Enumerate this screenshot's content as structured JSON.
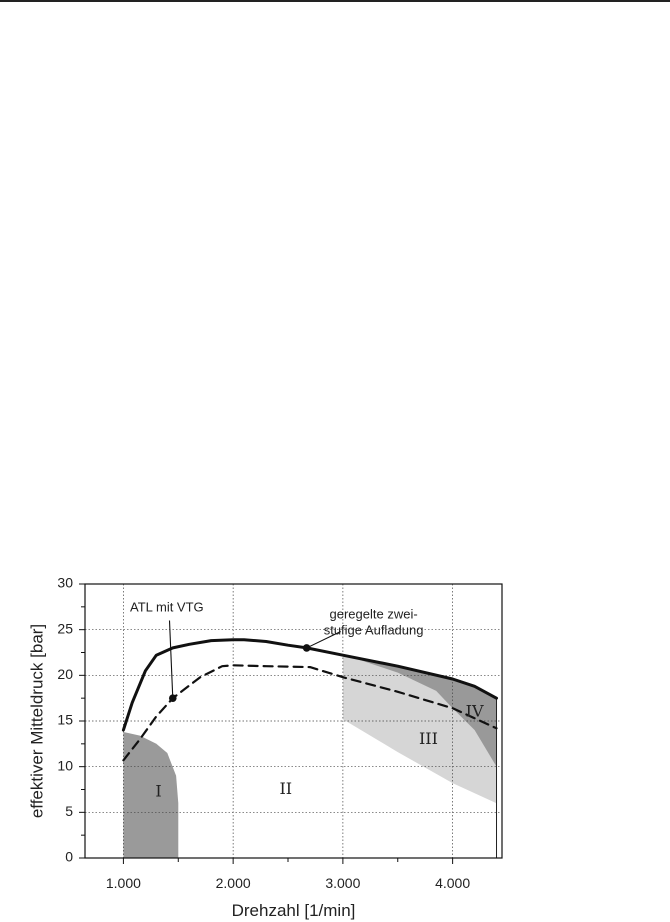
{
  "chart_data": {
    "type": "line",
    "xlabel": "Drehzahl [1/min]",
    "ylabel": "effektiver Mitteldruck [bar]",
    "xlim": [
      650,
      4450
    ],
    "ylim": [
      0,
      30
    ],
    "x_ticks": [
      1000,
      2000,
      3000,
      4000
    ],
    "x_tick_labels": [
      "1.000",
      "2.000",
      "3.000",
      "4.000"
    ],
    "y_ticks": [
      0,
      5,
      10,
      15,
      20,
      25,
      30
    ],
    "y_tick_labels": [
      "0",
      "5",
      "10",
      "15",
      "20",
      "25",
      "30"
    ],
    "grid": true,
    "series": [
      {
        "style": "solid",
        "x": [
          1000,
          1080,
          1200,
          1300,
          1450,
          1600,
          1800,
          2000,
          2100,
          2300,
          2500,
          2670,
          3000,
          3500,
          4000,
          4200,
          4400
        ],
        "y": [
          14.0,
          17.0,
          20.5,
          22.2,
          23.0,
          23.4,
          23.8,
          23.9,
          23.9,
          23.7,
          23.3,
          23.0,
          22.2,
          21.0,
          19.6,
          18.8,
          17.5
        ]
      },
      {
        "style": "dashed",
        "x": [
          1000,
          1150,
          1300,
          1450,
          1700,
          1900,
          2000,
          2300,
          2700,
          3000,
          3500,
          4000,
          4400
        ],
        "y": [
          10.7,
          13.0,
          15.5,
          17.5,
          19.8,
          21.0,
          21.1,
          21.0,
          20.9,
          19.8,
          18.2,
          16.4,
          14.2
        ]
      }
    ],
    "regions": [
      {
        "label": "I",
        "label_at": [
          1320,
          7.2
        ],
        "color": "#9a9a9a",
        "polygon": [
          [
            1000,
            0
          ],
          [
            1000,
            13.8
          ],
          [
            1150,
            13.4
          ],
          [
            1300,
            12.5
          ],
          [
            1400,
            11.5
          ],
          [
            1480,
            9.0
          ],
          [
            1500,
            6.0
          ],
          [
            1500,
            0
          ]
        ]
      },
      {
        "label": "II",
        "label_at": [
          2480,
          7.5
        ],
        "color": "#ffffff",
        "polygon": []
      },
      {
        "label": "III",
        "label_at": [
          3780,
          13.0
        ],
        "color": "#d6d6d6",
        "polygon": [
          [
            3000,
            22.2
          ],
          [
            3500,
            21.0
          ],
          [
            3850,
            20.0
          ],
          [
            4000,
            16.4
          ],
          [
            4200,
            14.0
          ],
          [
            4400,
            10.0
          ],
          [
            4400,
            6.0
          ],
          [
            4000,
            8.2
          ],
          [
            3500,
            11.6
          ],
          [
            3000,
            15.2
          ]
        ]
      },
      {
        "label": "IV",
        "label_at": [
          4200,
          16.0
        ],
        "color": "#999999",
        "polygon": [
          [
            3000,
            22.2
          ],
          [
            3500,
            21.0
          ],
          [
            4000,
            19.6
          ],
          [
            4200,
            18.8
          ],
          [
            4400,
            17.5
          ],
          [
            4400,
            10.0
          ],
          [
            4200,
            14.0
          ],
          [
            4000,
            16.4
          ],
          [
            3850,
            18.3
          ],
          [
            3500,
            20.3
          ],
          [
            3150,
            21.7
          ]
        ]
      }
    ],
    "annotations": [
      {
        "lines": [
          "ATL mit VTG"
        ],
        "point": [
          1450,
          17.5
        ],
        "text_at": [
          1060,
          27.0
        ],
        "line_from": [
          1420,
          26.0
        ]
      },
      {
        "lines": [
          "geregelte zwei-",
          "stufige Aufladung"
        ],
        "point": [
          2670,
          23.0
        ],
        "text_at": [
          3280,
          26.2
        ],
        "line_from": [
          2980,
          24.8
        ]
      }
    ]
  }
}
